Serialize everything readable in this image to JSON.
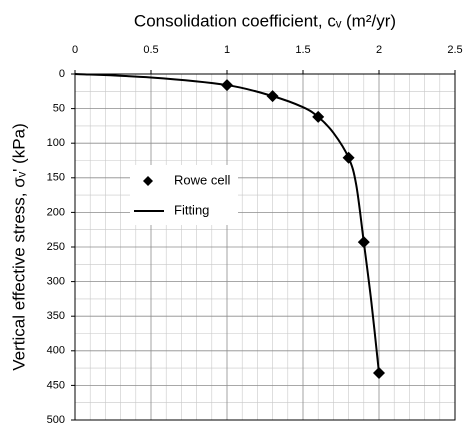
{
  "chart_data": {
    "type": "scatter-line",
    "x_label": "Consolidation coefficient, cᵥ (m²/yr)",
    "y_label": "Vertical effective stress, σᵥ' (kPa)",
    "xlim": [
      0,
      2.5
    ],
    "xticks": [
      0,
      0.5,
      1,
      1.5,
      2,
      2.5
    ],
    "ylim": [
      0,
      500
    ],
    "yticks": [
      0,
      50,
      100,
      150,
      200,
      250,
      300,
      350,
      400,
      450,
      500
    ],
    "x_axis_position": "top",
    "y_inverted": true,
    "grid": true,
    "minor_grid": true,
    "legend_position": "left",
    "series": [
      {
        "name": "Rowe cell",
        "mode": "markers",
        "color": "#000000",
        "x": [
          1,
          1.3,
          1.6,
          1.8,
          1.9,
          2.0
        ],
        "values": [
          16,
          32,
          62,
          121,
          243,
          432
        ]
      },
      {
        "name": "Fitting",
        "mode": "line",
        "color": "#000000",
        "x": [
          0,
          0.5,
          1,
          1.3,
          1.5,
          1.6,
          1.7,
          1.8,
          1.85,
          1.9,
          1.95,
          2.0
        ],
        "values": [
          0,
          5,
          16,
          32,
          48,
          62,
          85,
          121,
          160,
          243,
          330,
          432
        ]
      }
    ]
  }
}
